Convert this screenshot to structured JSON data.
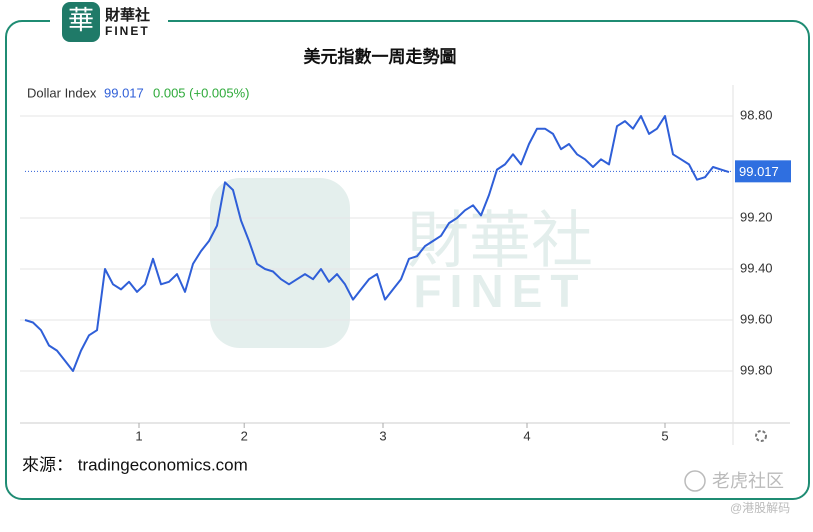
{
  "logo": {
    "name": "財華社",
    "sub": "FINET"
  },
  "chart_data": {
    "type": "line",
    "title": "美元指數一周走勢圖",
    "legend": {
      "name": "Dollar Index",
      "last": 99.017,
      "change": "0.005 (+0.005%)"
    },
    "series": [
      {
        "name": "Dollar Index",
        "color": "#2f5fd8",
        "values": [
          99.6,
          99.61,
          99.64,
          99.7,
          99.72,
          99.76,
          99.8,
          99.72,
          99.66,
          99.64,
          99.4,
          99.46,
          99.48,
          99.45,
          99.49,
          99.46,
          99.36,
          99.46,
          99.45,
          99.42,
          99.49,
          99.38,
          99.33,
          99.29,
          99.23,
          99.06,
          99.09,
          99.21,
          99.29,
          99.38,
          99.4,
          99.41,
          99.44,
          99.46,
          99.44,
          99.42,
          99.44,
          99.4,
          99.45,
          99.42,
          99.46,
          99.52,
          99.48,
          99.44,
          99.42,
          99.52,
          99.48,
          99.44,
          99.36,
          99.35,
          99.31,
          99.29,
          99.27,
          99.22,
          99.2,
          99.17,
          99.15,
          99.19,
          99.11,
          99.01,
          98.99,
          98.95,
          98.99,
          98.91,
          98.85,
          98.85,
          98.87,
          98.93,
          98.91,
          98.95,
          98.97,
          99.0,
          98.97,
          98.99,
          98.84,
          98.82,
          98.85,
          98.8,
          98.87,
          98.85,
          98.8,
          98.95,
          98.97,
          98.99,
          99.05,
          99.04,
          99.0,
          99.01,
          99.02
        ]
      }
    ],
    "xlim": [
      0,
      88.5
    ],
    "xticks": [
      {
        "value": 14.25,
        "label": "1"
      },
      {
        "value": 27.4,
        "label": "2"
      },
      {
        "value": 44.75,
        "label": "3"
      },
      {
        "value": 62.75,
        "label": "4"
      },
      {
        "value": 80,
        "label": "5"
      }
    ],
    "ylim": [
      98.7,
      100.0
    ],
    "y_inverted": true,
    "yticks": [
      {
        "value": 98.8,
        "label": "98.80"
      },
      {
        "value": 99.2,
        "label": "99.20"
      },
      {
        "value": 99.4,
        "label": "99.40"
      },
      {
        "value": 99.6,
        "label": "99.60"
      },
      {
        "value": 99.8,
        "label": "99.80"
      }
    ],
    "grid": true,
    "source": "來源： tradingeconomics.com"
  },
  "watermark": {
    "brand": "老虎社区",
    "handle": "@港股解码"
  }
}
